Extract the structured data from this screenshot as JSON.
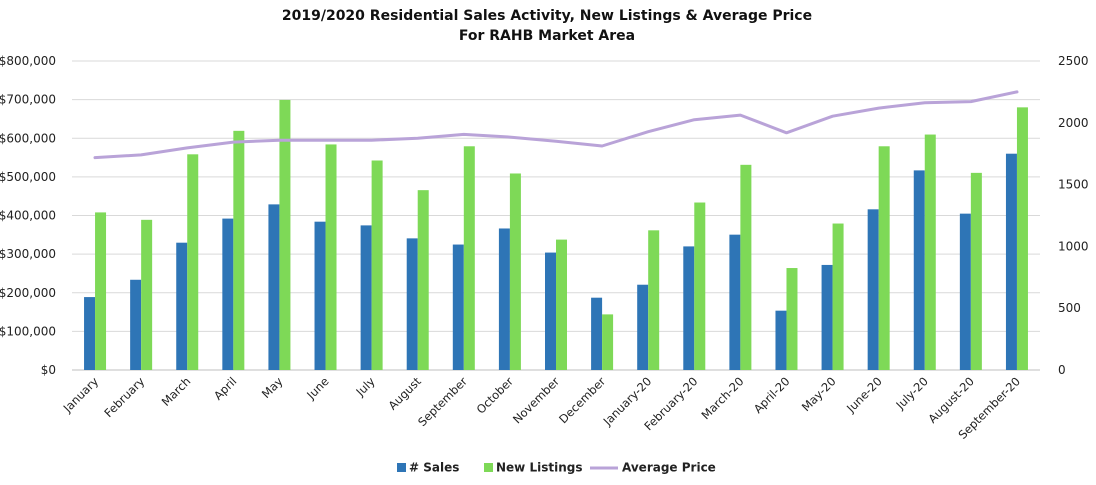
{
  "chart_data": {
    "type": "bar",
    "title": "2019/2020 Residential Sales Activity, New Listings & Average Price",
    "subtitle": "For RAHB Market Area",
    "categories": [
      "January",
      "February",
      "March",
      "April",
      "May",
      "June",
      "July",
      "August",
      "September",
      "October",
      "November",
      "December",
      "January-20",
      "February-20",
      "March-20",
      "April-20",
      "May-20",
      "June-20",
      "July-20",
      "August-20",
      "September-20"
    ],
    "series": [
      {
        "name": "# Sales",
        "type": "bar",
        "axis": "right",
        "color": "#2e75b6",
        "values": [
          590,
          730,
          1030,
          1225,
          1340,
          1200,
          1170,
          1065,
          1015,
          1145,
          950,
          585,
          690,
          1000,
          1095,
          480,
          850,
          1300,
          1615,
          1265,
          1750
        ]
      },
      {
        "name": "New Listings",
        "type": "bar",
        "axis": "right",
        "color": "#7ed957",
        "values": [
          1275,
          1215,
          1745,
          1935,
          2185,
          1825,
          1695,
          1455,
          1810,
          1590,
          1055,
          450,
          1130,
          1355,
          1660,
          825,
          1185,
          1810,
          1905,
          1595,
          2125
        ]
      },
      {
        "name": "Average Price",
        "type": "line",
        "axis": "left",
        "color": "#b9a3d8",
        "values": [
          550000,
          557000,
          575000,
          590000,
          595000,
          595000,
          595000,
          600000,
          610000,
          603000,
          592000,
          580000,
          617000,
          648000,
          660000,
          614000,
          657000,
          678000,
          692000,
          695000,
          720000
        ]
      }
    ],
    "y_left": {
      "ylim": [
        0,
        800000
      ],
      "ticks": [
        "$0",
        "$100,000",
        "$200,000",
        "$300,000",
        "$400,000",
        "$500,000",
        "$600,000",
        "$700,000",
        "$800,000"
      ]
    },
    "y_right": {
      "ylim": [
        0,
        2500
      ],
      "ticks": [
        "0",
        "500",
        "1000",
        "1500",
        "2000",
        "2500"
      ]
    },
    "grid": true,
    "legend": "bottom"
  }
}
